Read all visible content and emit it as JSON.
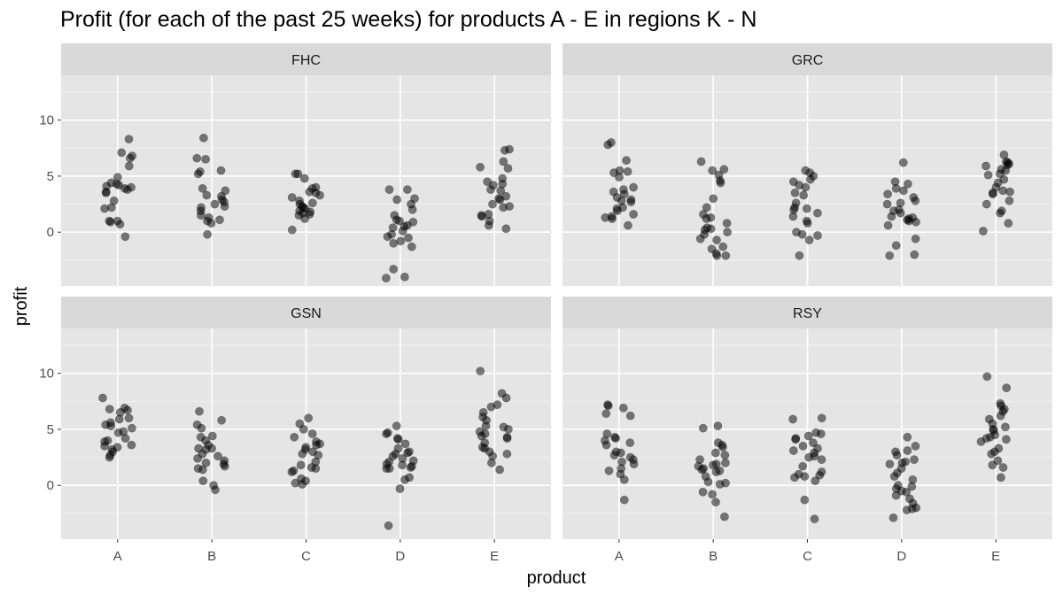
{
  "chart_data": {
    "type": "scatter",
    "title": "Profit (for each of the past 25 weeks) for products A - E in regions K - N",
    "xlabel": "product",
    "ylabel": "profit",
    "categories": [
      "A",
      "B",
      "C",
      "D",
      "E"
    ],
    "ylim": [
      -4.8,
      14
    ],
    "yticks": [
      0,
      5,
      10
    ],
    "grid": true,
    "point_color": "#000000",
    "point_opacity": 0.5,
    "panel_background": "#e5e5e5",
    "strip_background": "#d9d9d9",
    "panels": [
      {
        "name": "FHC",
        "points": {
          "A": [
            8.3,
            7.1,
            6.8,
            6.6,
            5.9,
            4.9,
            4.4,
            4.3,
            4.2,
            4.1,
            4.0,
            3.9,
            3.8,
            3.6,
            3.5,
            2.8,
            2.2,
            2.1,
            1.0,
            1.0,
            0.9,
            0.7,
            -0.4
          ],
          "B": [
            8.4,
            6.6,
            6.5,
            5.5,
            5.4,
            5.2,
            3.9,
            3.7,
            3.3,
            3.2,
            2.9,
            2.7,
            2.5,
            2.3,
            2.2,
            1.9,
            1.5,
            1.3,
            1.1,
            1.0,
            0.8,
            -0.2
          ],
          "C": [
            5.2,
            5.2,
            4.8,
            4.0,
            3.9,
            3.6,
            3.5,
            3.3,
            3.1,
            2.8,
            2.6,
            2.5,
            2.3,
            2.2,
            2.1,
            1.9,
            1.8,
            1.7,
            1.6,
            1.5,
            1.2,
            0.2
          ],
          "D": [
            3.8,
            3.8,
            3.0,
            2.9,
            2.5,
            2.0,
            1.5,
            1.1,
            1.0,
            0.9,
            0.6,
            0.5,
            0.4,
            0.1,
            -0.2,
            -0.4,
            -0.5,
            -0.8,
            -1.0,
            -1.3,
            -3.3,
            -4.0,
            -4.1
          ],
          "E": [
            7.4,
            7.3,
            6.3,
            5.8,
            5.7,
            4.8,
            4.5,
            4.3,
            4.2,
            3.8,
            3.7,
            3.2,
            3.0,
            2.9,
            2.5,
            2.3,
            2.2,
            1.6,
            1.5,
            1.4,
            1.0,
            0.6,
            0.3
          ]
        }
      },
      {
        "name": "GRC",
        "points": {
          "A": [
            8.0,
            7.8,
            6.4,
            5.5,
            5.4,
            5.3,
            4.9,
            4.0,
            3.8,
            3.6,
            3.4,
            3.1,
            2.9,
            2.8,
            2.7,
            2.2,
            2.1,
            1.9,
            1.6,
            1.4,
            1.3,
            1.2,
            0.6
          ],
          "B": [
            6.3,
            5.6,
            5.5,
            5.1,
            4.6,
            4.4,
            3.0,
            2.2,
            1.6,
            1.3,
            1.2,
            0.8,
            0.4,
            0.3,
            0.2,
            0.0,
            -0.2,
            -0.6,
            -0.7,
            -1.3,
            -1.5,
            -1.9,
            -2.1,
            -2.1
          ],
          "C": [
            5.5,
            5.3,
            5.0,
            4.7,
            4.5,
            4.2,
            4.0,
            3.5,
            3.3,
            2.6,
            2.2,
            2.1,
            2.0,
            1.7,
            1.4,
            1.0,
            0.8,
            0.0,
            -0.2,
            -0.3,
            -0.7,
            -2.1
          ],
          "D": [
            6.2,
            4.5,
            4.3,
            3.9,
            3.7,
            3.4,
            3.1,
            2.8,
            2.6,
            2.5,
            2.0,
            1.9,
            1.7,
            1.4,
            1.3,
            1.2,
            1.1,
            1.0,
            0.9,
            0.6,
            -0.6,
            -1.2,
            -2.0,
            -2.1
          ],
          "E": [
            6.9,
            6.3,
            6.2,
            6.1,
            6.0,
            5.9,
            5.6,
            5.5,
            5.2,
            5.1,
            4.7,
            4.4,
            4.0,
            3.7,
            3.6,
            3.5,
            3.4,
            2.8,
            2.5,
            1.9,
            1.7,
            0.8,
            0.1
          ]
        }
      },
      {
        "name": "GSN",
        "points": {
          "A": [
            7.8,
            6.9,
            6.8,
            6.7,
            6.5,
            6.0,
            5.9,
            5.6,
            5.4,
            5.3,
            5.1,
            4.8,
            4.7,
            4.2,
            4.0,
            3.9,
            3.6,
            3.5,
            3.4,
            3.2,
            3.0,
            2.7,
            2.5
          ],
          "B": [
            6.6,
            5.8,
            5.4,
            5.1,
            4.4,
            4.3,
            4.0,
            3.6,
            3.3,
            3.3,
            3.2,
            2.8,
            2.6,
            2.4,
            2.2,
            2.0,
            1.9,
            1.7,
            1.5,
            1.4,
            0.4,
            0.0,
            -0.4
          ],
          "C": [
            6.0,
            5.5,
            5.0,
            4.6,
            4.3,
            3.9,
            3.7,
            3.6,
            3.4,
            3.2,
            3.0,
            2.8,
            2.7,
            2.1,
            1.8,
            1.6,
            1.5,
            1.3,
            1.2,
            0.6,
            0.4,
            0.2,
            0.1
          ],
          "D": [
            5.3,
            4.7,
            4.6,
            4.2,
            4.1,
            3.7,
            3.3,
            3.0,
            2.9,
            2.8,
            2.6,
            2.4,
            2.2,
            2.1,
            1.9,
            1.8,
            1.7,
            1.6,
            1.5,
            1.5,
            0.7,
            0.5,
            -0.3,
            -3.6
          ],
          "E": [
            10.2,
            8.2,
            7.8,
            7.2,
            7.0,
            6.5,
            6.1,
            5.8,
            5.3,
            5.2,
            5.0,
            4.8,
            4.6,
            4.4,
            4.3,
            4.2,
            3.8,
            3.4,
            3.3,
            3.0,
            2.8,
            2.6,
            2.0,
            1.4
          ]
        }
      },
      {
        "name": "RSY",
        "points": {
          "A": [
            7.2,
            7.1,
            6.9,
            6.4,
            6.2,
            4.6,
            4.3,
            4.2,
            4.0,
            3.8,
            3.6,
            3.0,
            2.9,
            2.7,
            2.5,
            2.3,
            2.1,
            1.9,
            1.5,
            1.3,
            1.0,
            0.5,
            -1.3
          ],
          "B": [
            5.3,
            5.1,
            3.8,
            3.6,
            3.4,
            2.9,
            2.7,
            2.3,
            2.0,
            1.9,
            1.8,
            1.7,
            1.5,
            1.4,
            1.3,
            1.2,
            0.8,
            0.3,
            0.2,
            0.1,
            -0.6,
            -0.8,
            -1.5,
            -2.8
          ],
          "C": [
            6.0,
            5.9,
            4.7,
            4.6,
            4.4,
            4.2,
            4.1,
            3.8,
            3.5,
            3.3,
            3.1,
            2.9,
            2.6,
            2.5,
            2.3,
            1.7,
            1.2,
            1.0,
            0.9,
            0.8,
            0.7,
            0.4,
            -1.3,
            -3.0
          ],
          "D": [
            4.3,
            3.5,
            3.1,
            3.0,
            2.7,
            2.3,
            2.1,
            2.0,
            1.9,
            1.5,
            1.1,
            0.8,
            0.5,
            0.0,
            -0.1,
            -0.3,
            -0.5,
            -0.6,
            -0.9,
            -1.2,
            -1.6,
            -2.0,
            -2.1,
            -2.2,
            -2.9
          ],
          "E": [
            9.7,
            8.7,
            7.3,
            7.1,
            6.8,
            6.6,
            6.2,
            5.9,
            5.5,
            5.2,
            5.0,
            4.9,
            4.5,
            4.3,
            4.2,
            4.1,
            3.9,
            3.3,
            3.0,
            2.8,
            2.2,
            1.8,
            1.6,
            0.7
          ]
        }
      }
    ]
  }
}
